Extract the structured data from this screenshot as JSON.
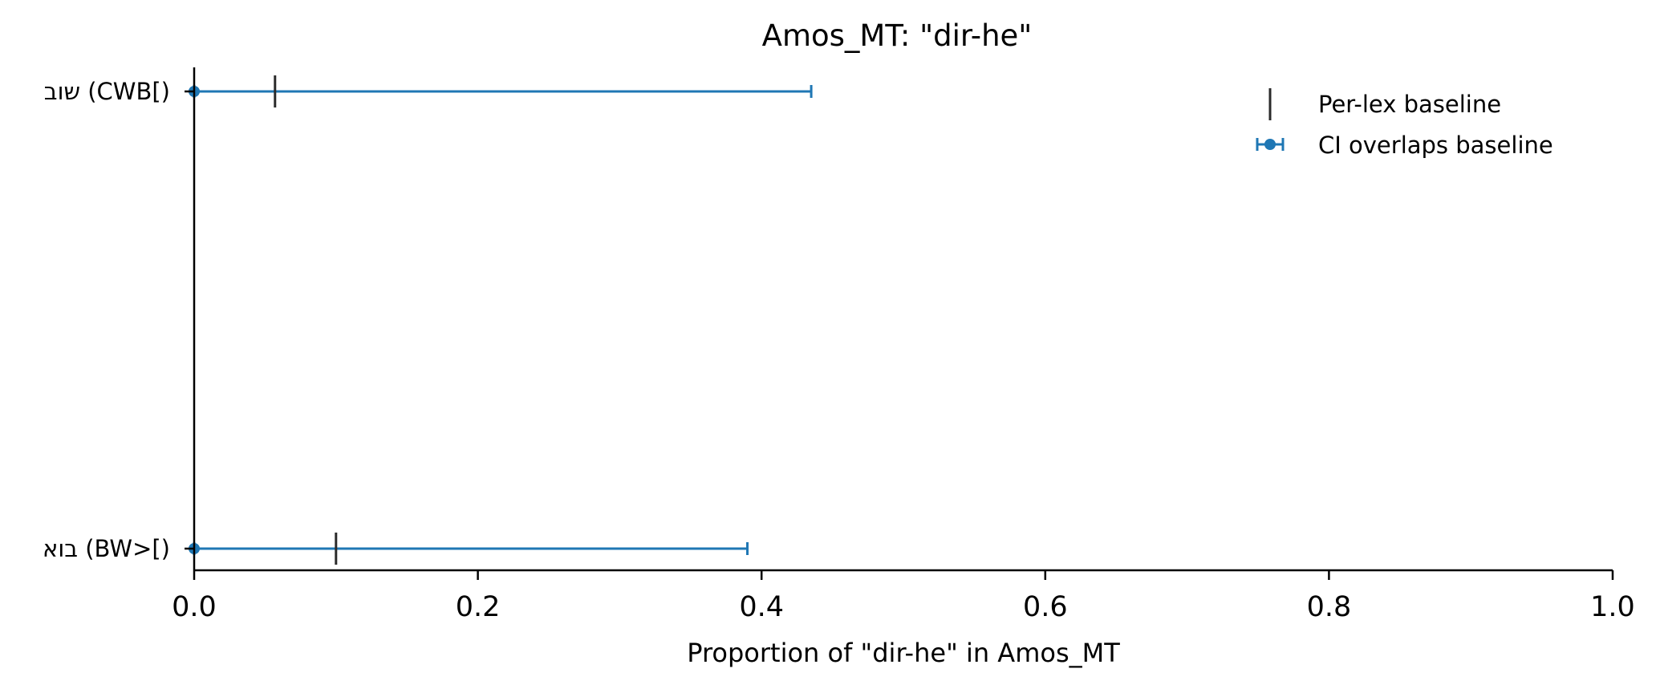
{
  "chart_data": {
    "type": "scatter",
    "title": "Amos_MT: \"dir-he\"",
    "xlabel": "Proportion of \"dir-he\" in Amos_MT",
    "ylabel": "",
    "xlim": [
      0.0,
      1.0
    ],
    "xticks": [
      0.0,
      0.2,
      0.4,
      0.6,
      0.8,
      1.0
    ],
    "xtick_labels": [
      "0.0",
      "0.2",
      "0.4",
      "0.6",
      "0.8",
      "1.0"
    ],
    "categories": [
      "שוב (CWB[)",
      "בוא (BW>[)"
    ],
    "series": [
      {
        "name": "CI overlaps baseline",
        "values": [
          0.0,
          0.0
        ],
        "ci_low": [
          0.0,
          0.0
        ],
        "ci_high": [
          0.435,
          0.39
        ]
      },
      {
        "name": "Per-lex baseline",
        "values": [
          0.057,
          0.1
        ]
      }
    ],
    "grid": false,
    "legend_position": "top-right",
    "colors": {
      "ci": "#1f77b4",
      "baseline": "#2b2b2b",
      "axis": "#000000"
    }
  }
}
